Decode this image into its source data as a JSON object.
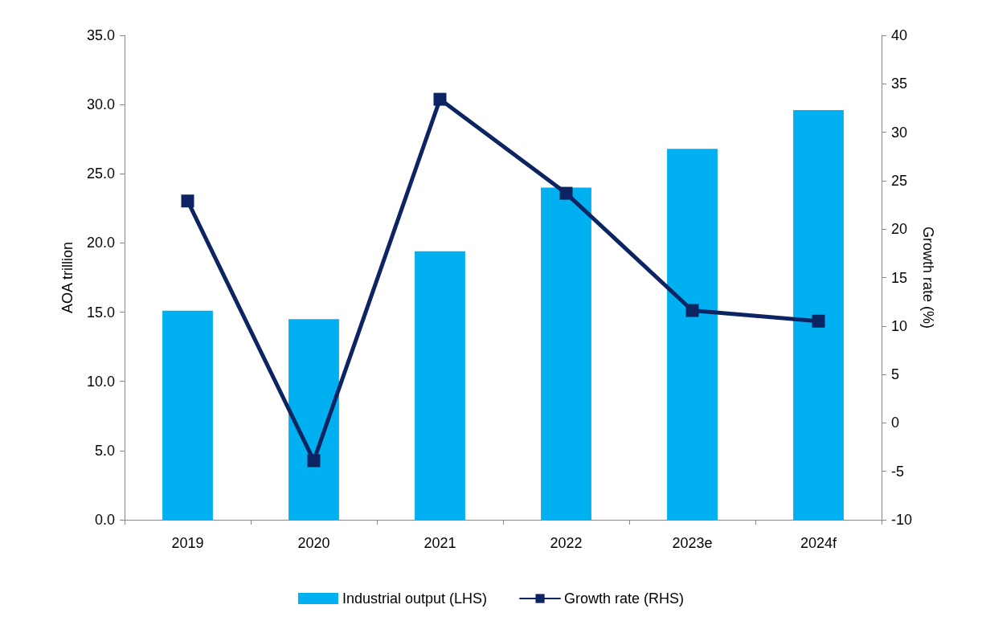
{
  "chart_data": {
    "type": "bar",
    "ylabel": "AOA trillion",
    "y2label": "Growth rate (%)",
    "categories": [
      "2019",
      "2020",
      "2021",
      "2022",
      "2023e",
      "2024f"
    ],
    "series": [
      {
        "name": "Industrial output (LHS)",
        "color": "#00b0f0",
        "values": [
          15.1,
          14.5,
          19.4,
          24.0,
          26.8,
          29.6
        ]
      },
      {
        "name": "Growth rate (RHS)",
        "type": "line",
        "axis": "y2",
        "color": "#0c2461",
        "values": [
          22.9,
          -3.9,
          33.4,
          23.7,
          11.6,
          10.5
        ]
      }
    ],
    "ylim": [
      0,
      35
    ],
    "yticks": [
      {
        "value": 0,
        "label": "0.0"
      },
      {
        "value": 5,
        "label": "5.0"
      },
      {
        "value": 10,
        "label": "10.0"
      },
      {
        "value": 15,
        "label": "15.0"
      },
      {
        "value": 20,
        "label": "20.0"
      },
      {
        "value": 25,
        "label": "25.0"
      },
      {
        "value": 30,
        "label": "30.0"
      },
      {
        "value": 35,
        "label": "35.0"
      }
    ],
    "y2lim": [
      -10,
      40
    ],
    "y2ticks": [
      -10,
      -5,
      0,
      5,
      10,
      15,
      20,
      25,
      30,
      35,
      40
    ],
    "grid": false,
    "legend": "bottom",
    "marker": "square",
    "line_style": "solid"
  }
}
